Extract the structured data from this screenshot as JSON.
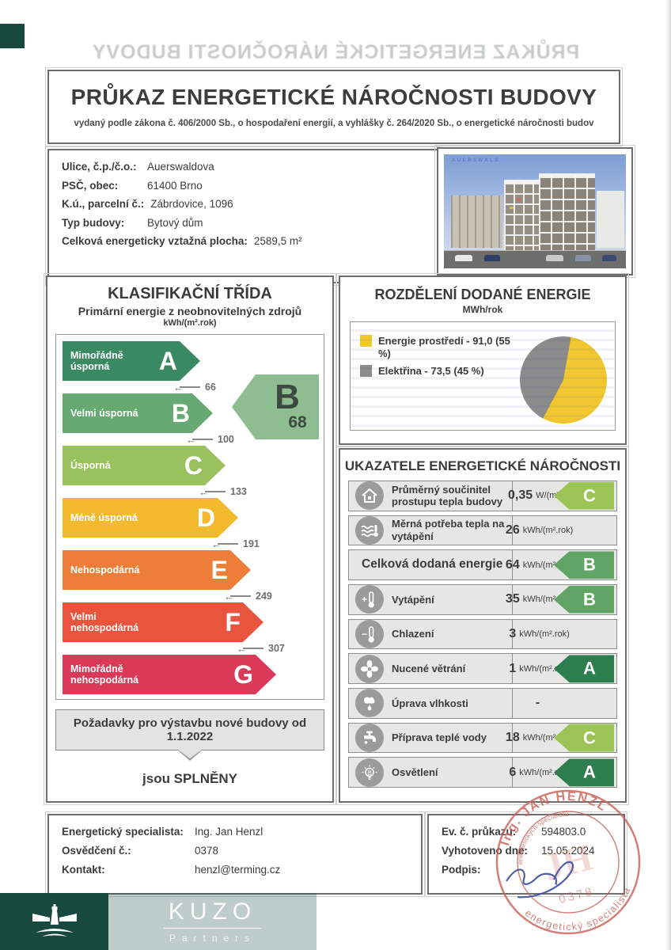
{
  "header": {
    "title": "PRŮKAZ ENERGETICKÉ NÁROČNOSTI BUDOVY",
    "subtitle": "vydaný podle zákona č. 406/2000 Sb., o hospodaření energií, a vyhlášky č. 264/2020 Sb., o energetické náročnosti budov",
    "ghost": "PRŮKAZ ENERGETICKÉ NÁROČNOSTI BUDOVY"
  },
  "building": {
    "rows": [
      {
        "label": "Ulice, č.p./č.o.:",
        "value": "Auerswaldova"
      },
      {
        "label": "PSČ, obec:",
        "value": "61400 Brno"
      },
      {
        "label": "K.ú., parcelní č.:",
        "value": "Zábrdovice, 1096"
      },
      {
        "label": "Typ budovy:",
        "value": "Bytový dům"
      },
      {
        "label": "Celková energeticky vztažná plocha:",
        "value": "2589,5 m²"
      }
    ],
    "photo_caption": "AUERSWALD"
  },
  "classification": {
    "title": "KLASIFIKAČNÍ TŘÍDA",
    "subtitle": "Primární energie z neobnovitelných zdrojů",
    "unit": "kWh/(m².rok)",
    "classes": [
      {
        "letter": "A",
        "label": "Mimořádně úsporná",
        "color": "#398a63",
        "threshold": "66"
      },
      {
        "letter": "B",
        "label": "Velmi úsporná",
        "color": "#67a972",
        "threshold": "100"
      },
      {
        "letter": "C",
        "label": "Úsporná",
        "color": "#99c25e",
        "threshold": "133"
      },
      {
        "letter": "D",
        "label": "Méně úsporná",
        "color": "#f4ba2d",
        "threshold": "191"
      },
      {
        "letter": "E",
        "label": "Nehospodárná",
        "color": "#ec7e3a",
        "threshold": "249"
      },
      {
        "letter": "F",
        "label": "Velmi nehospodárná",
        "color": "#e8543d",
        "threshold": "307"
      },
      {
        "letter": "G",
        "label": "Mimořádně nehospodárná",
        "color": "#da3a58",
        "threshold": null
      }
    ],
    "rating": {
      "letter": "B",
      "value": "68",
      "color": "#8dbd91"
    },
    "requirements_title": "Požadavky pro výstavbu nové budovy od 1.1.2022",
    "requirements_result": "jsou SPLNĚNY"
  },
  "delivered_energy": {
    "title": "ROZDĚLENÍ DODANÉ ENERGIE",
    "unit": "MWh/rok",
    "legend": [
      {
        "label": "Energie prostředí - 91,0 (55 %)",
        "color": "#f0c72f"
      },
      {
        "label": "Elektřina - 73,5 (45 %)",
        "color": "#8b8b8b"
      }
    ]
  },
  "chart_data": {
    "type": "pie",
    "title": "ROZDĚLENÍ DODANÉ ENERGIE",
    "unit": "MWh/rok",
    "labels": [
      "Energie prostředí",
      "Elektřina"
    ],
    "values": [
      91.0,
      73.5
    ],
    "percent": [
      55,
      45
    ],
    "colors": [
      "#f0c72f",
      "#8b8b8b"
    ],
    "legend_position": "left"
  },
  "indicators": {
    "title": "UKAZATELE ENERGETICKÉ NÁROČNOSTI",
    "class_colors": {
      "A": "#2e7d4f",
      "B": "#61a465",
      "C": "#9cc355"
    },
    "rows": [
      {
        "icon": "house",
        "label": "Průměrný součinitel prostupu tepla budovy",
        "value": "0,35",
        "unit": "W/(m².K)",
        "class": "C"
      },
      {
        "icon": "heat-waves",
        "label": "Měrná potřeba tepla na vytápění",
        "value": "26",
        "unit": "kWh/(m².rok)",
        "class": null
      },
      {
        "icon": null,
        "label": "Celková dodaná energie",
        "value": "64",
        "unit": "kWh/(m².rok)",
        "class": "B"
      },
      {
        "icon": "thermometer-plus",
        "label": "Vytápění",
        "value": "35",
        "unit": "kWh/(m².rok)",
        "class": "B"
      },
      {
        "icon": "thermometer-minus",
        "label": "Chlazení",
        "value": "3",
        "unit": "kWh/(m².rok)",
        "class": null
      },
      {
        "icon": "fan",
        "label": "Nucené větrání",
        "value": "1",
        "unit": "kWh/(m².rok)",
        "class": "A"
      },
      {
        "icon": "cloud-drop",
        "label": "Úprava vlhkosti",
        "value": "-",
        "unit": "",
        "class": null
      },
      {
        "icon": "faucet",
        "label": "Příprava teplé vody",
        "value": "18",
        "unit": "kWh/(m².rok)",
        "class": "C"
      },
      {
        "icon": "bulb",
        "label": "Osvětlení",
        "value": "6",
        "unit": "kWh/(m².rok)",
        "class": "A"
      }
    ]
  },
  "footer": {
    "left": [
      {
        "label": "Energetický specialista:",
        "value": "Ing. Jan Henzl"
      },
      {
        "label": "Osvědčení č.:",
        "value": "0378"
      },
      {
        "label": "Kontakt:",
        "value": "henzl@terming.cz"
      }
    ],
    "right": [
      {
        "label": "Ev. č. průkazu:",
        "value": "594803.0"
      },
      {
        "label": "Vyhotoveno dne:",
        "value": "15.05.2024"
      },
      {
        "label": "Podpis:",
        "value": ""
      }
    ]
  },
  "stamp": {
    "name": "Ing. JAN HENZL",
    "inner": "energetických specialistů",
    "number": "0378",
    "bottom": "energetický specialista",
    "color": "#c86057"
  },
  "logo": {
    "brand": "KUZO",
    "sub": "Partners"
  }
}
